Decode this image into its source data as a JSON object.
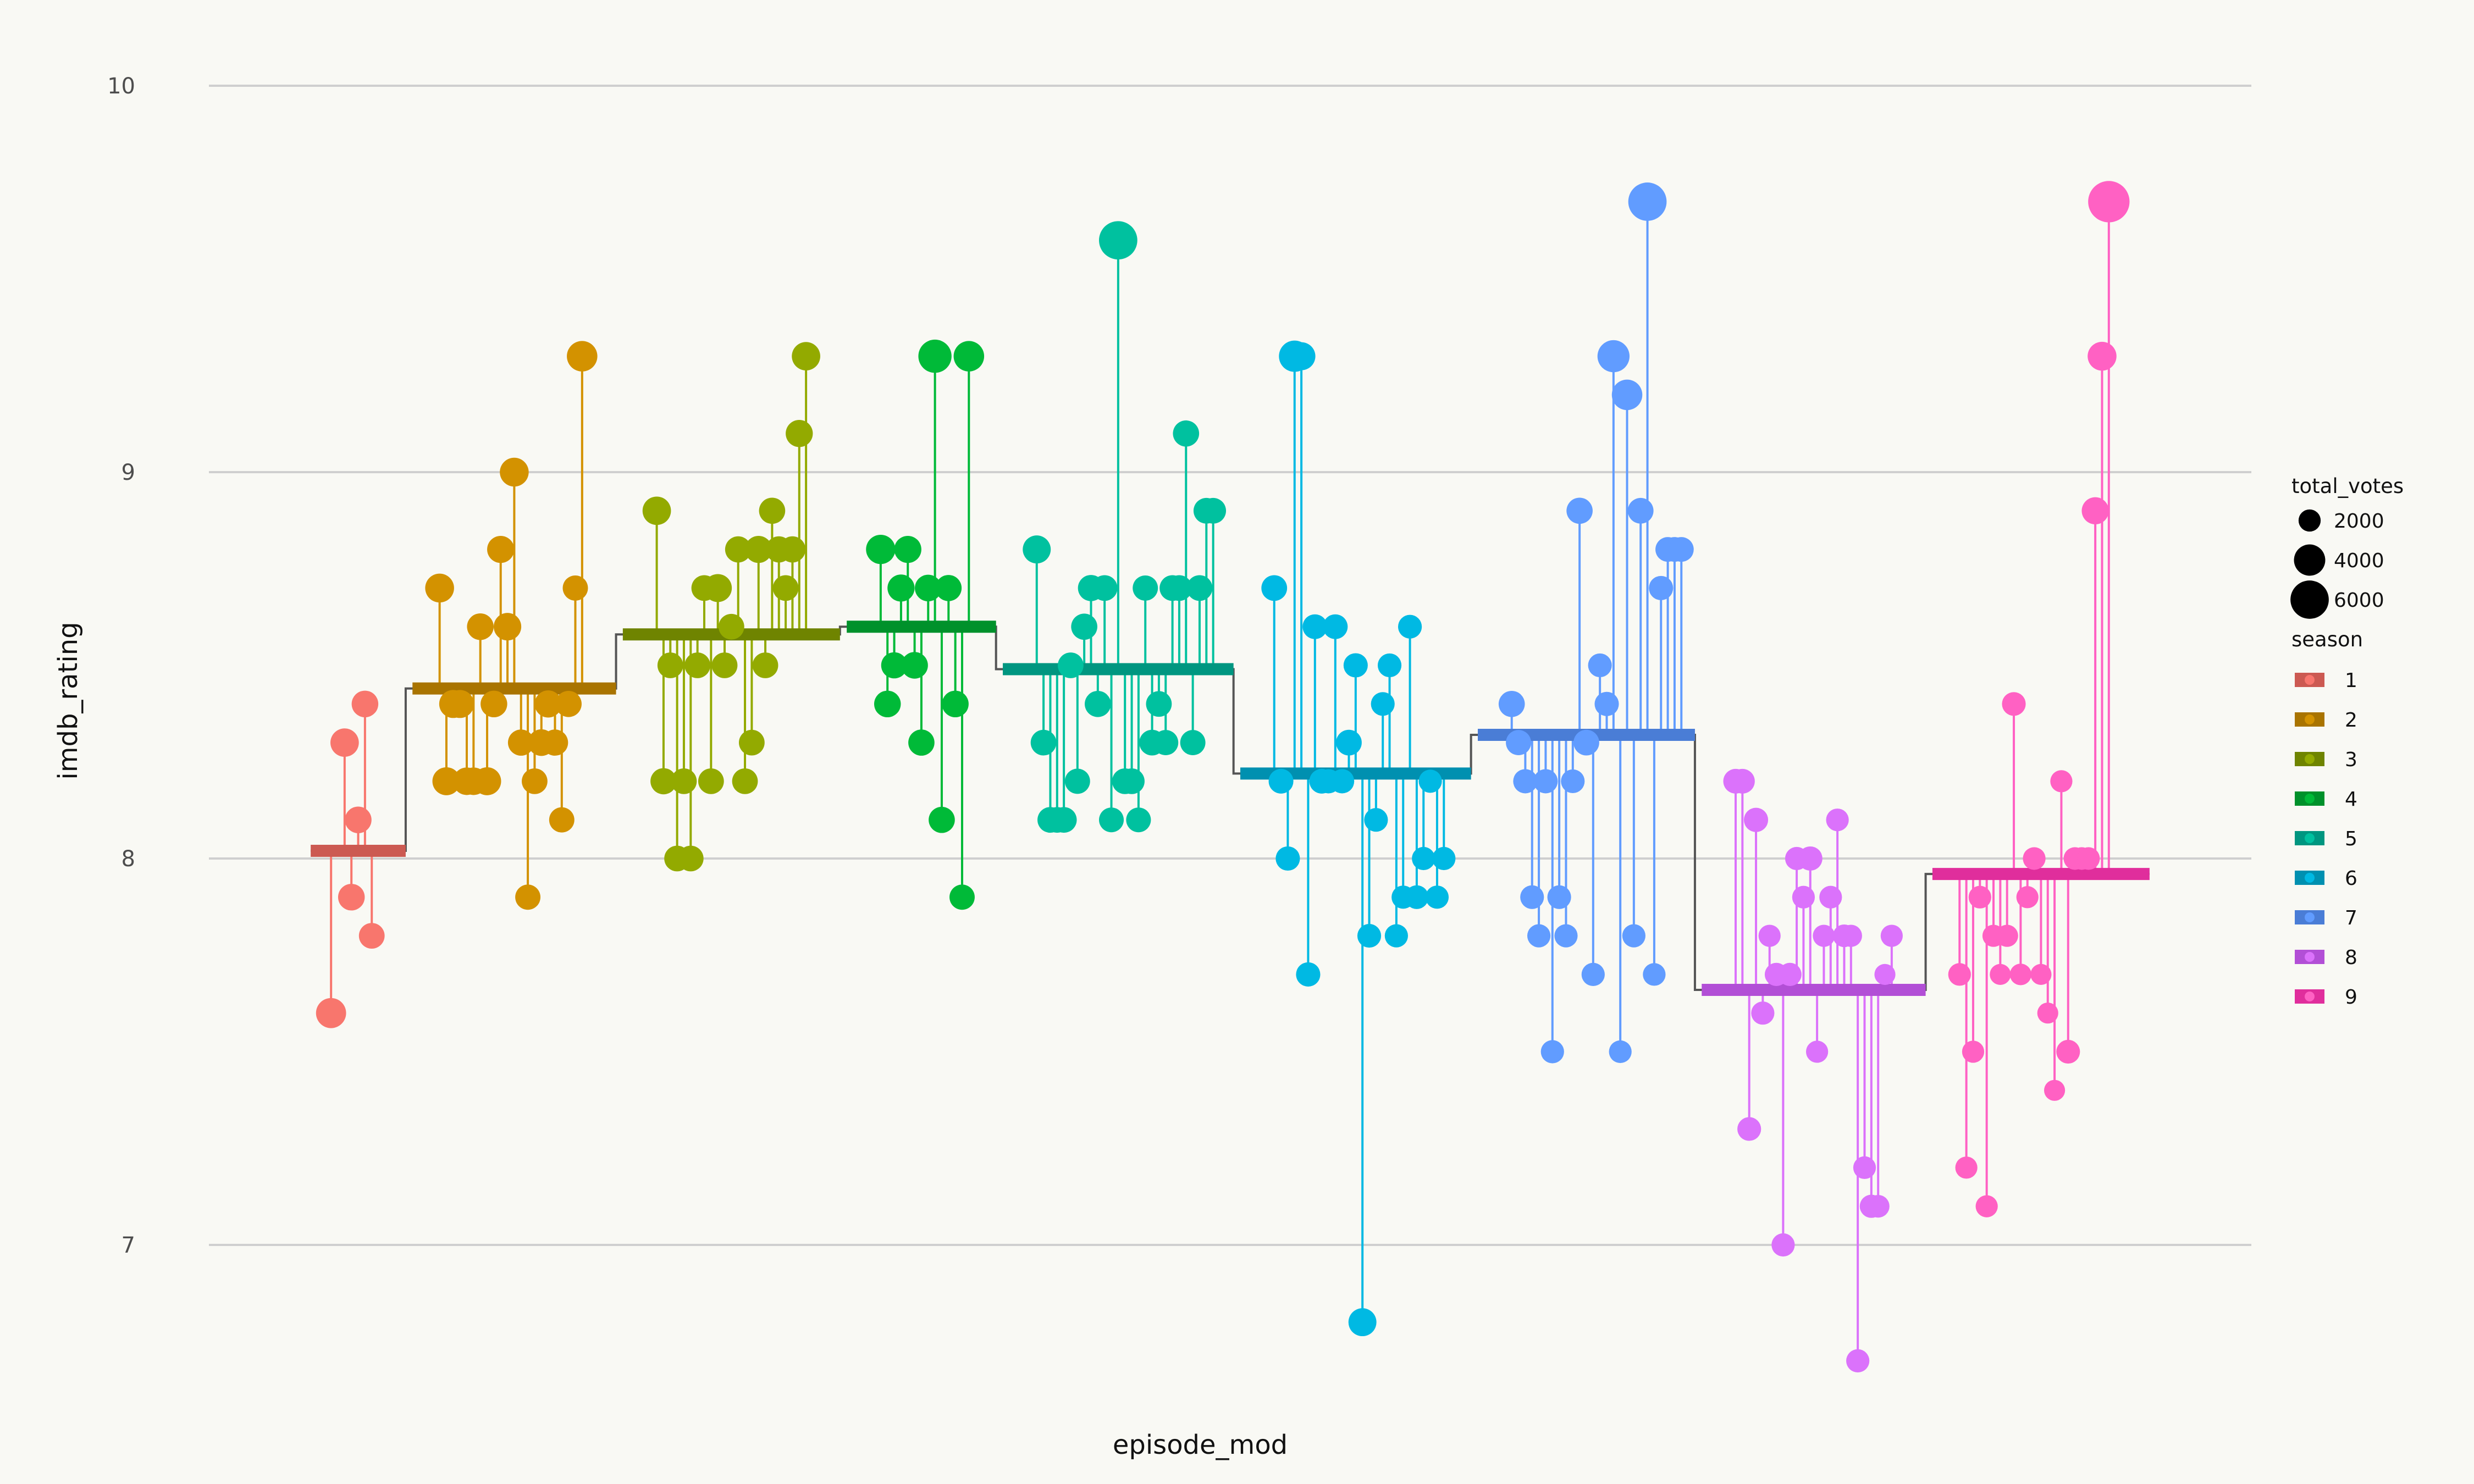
{
  "chart_data": {
    "type": "scatter",
    "title": "",
    "xlabel": "episode_mod",
    "ylabel": "imdb_rating",
    "ylim": [
      6.6,
      10.15
    ],
    "y_ticks": [
      7,
      8,
      9,
      10
    ],
    "grid": "horizontal",
    "legend_placement": "right",
    "size_legend": {
      "title": "total_votes",
      "entries": [
        {
          "label": "2000",
          "value": 2000
        },
        {
          "label": "4000",
          "value": 4000
        },
        {
          "label": "6000",
          "value": 6000
        }
      ]
    },
    "color_legend": {
      "title": "season",
      "entries": [
        {
          "label": "1",
          "season": 1
        },
        {
          "label": "2",
          "season": 2
        },
        {
          "label": "3",
          "season": 3
        },
        {
          "label": "4",
          "season": 4
        },
        {
          "label": "5",
          "season": 5
        },
        {
          "label": "6",
          "season": 6
        },
        {
          "label": "7",
          "season": 7
        },
        {
          "label": "8",
          "season": 8
        },
        {
          "label": "9",
          "season": 9
        }
      ]
    },
    "series": [
      {
        "season": 1,
        "color": "#F8766D",
        "avg_color": "#CC5A52",
        "avg": 8.02,
        "x": [
          4,
          6,
          7,
          8,
          9,
          10
        ],
        "y": [
          7.6,
          8.3,
          7.9,
          8.1,
          8.4,
          7.8
        ],
        "votes": [
          3700,
          3300,
          2900,
          2900,
          2900,
          2700
        ]
      },
      {
        "season": 2,
        "color": "#D39200",
        "avg_color": "#A97400",
        "avg": 8.44,
        "x": [
          20,
          21,
          22,
          23,
          24,
          25,
          26,
          27,
          28,
          29,
          30,
          31,
          32,
          33,
          34,
          35,
          36,
          37,
          38,
          39,
          40,
          41
        ],
        "y": [
          8.7,
          8.2,
          8.4,
          8.4,
          8.2,
          8.2,
          8.6,
          8.2,
          8.4,
          8.8,
          8.6,
          9.0,
          8.3,
          7.9,
          8.2,
          8.3,
          8.4,
          8.3,
          8.1,
          8.4,
          8.7,
          9.3
        ],
        "votes": [
          3400,
          3200,
          3200,
          3200,
          3100,
          3100,
          2900,
          3200,
          2900,
          3000,
          3100,
          3400,
          2800,
          2600,
          2700,
          2900,
          3000,
          2800,
          2600,
          2800,
          2600,
          3800
        ]
      },
      {
        "season": 3,
        "color": "#93AA00",
        "avg_color": "#6F8400",
        "avg": 8.58,
        "x": [
          52,
          53,
          54,
          55,
          56,
          57,
          58,
          59,
          60,
          61,
          62,
          63,
          64,
          65,
          66,
          67,
          68,
          69,
          70,
          71,
          72,
          73,
          74
        ],
        "y": [
          8.9,
          8.2,
          8.5,
          8.0,
          8.2,
          8.0,
          8.5,
          8.7,
          8.2,
          8.7,
          8.5,
          8.6,
          8.8,
          8.2,
          8.3,
          8.8,
          8.5,
          8.9,
          8.8,
          8.7,
          8.8,
          9.1,
          9.3
        ],
        "votes": [
          3300,
          2800,
          2700,
          2700,
          2700,
          2700,
          2700,
          2700,
          2700,
          3200,
          2700,
          2700,
          2800,
          2700,
          2700,
          3000,
          2700,
          2800,
          2800,
          2700,
          2800,
          3000,
          3300
        ]
      },
      {
        "season": 4,
        "color": "#00BA38",
        "avg_color": "#00912B",
        "avg": 8.6,
        "x": [
          85,
          86,
          87,
          88,
          89,
          90,
          91,
          92,
          93,
          94,
          95,
          96
        ],
        "y": [
          8.8,
          8.4,
          8.5,
          8.7,
          8.8,
          8.5,
          8.3,
          8.7,
          9.3,
          8.1,
          8.7,
          8.4
        ],
        "votes": [
          3500,
          2900,
          2800,
          3000,
          3000,
          2900,
          2800,
          2900,
          4500,
          2800,
          2800,
          2900
        ]
      },
      {
        "season": 4,
        "color": "#00BA38",
        "avg_color": "#00912B",
        "avg": 8.6,
        "x": [
          97,
          98
        ],
        "y": [
          7.9,
          9.3
        ],
        "votes": [
          2600,
          3800
        ]
      },
      {
        "season": 5,
        "color": "#00C19F",
        "avg_color": "#009680",
        "avg": 8.49,
        "x": [
          108,
          109,
          110,
          111,
          112,
          113,
          114,
          115,
          116,
          117,
          118,
          119,
          120,
          121,
          122,
          123,
          124,
          125,
          126,
          127,
          128,
          129,
          130,
          131,
          132,
          133,
          134
        ],
        "y": [
          8.8,
          8.3,
          8.1,
          8.1,
          8.1,
          8.5,
          8.2,
          8.6,
          8.7,
          8.4,
          8.7,
          8.1,
          9.6,
          8.2,
          8.2,
          8.1,
          8.7,
          8.3,
          8.4,
          8.3,
          8.7,
          8.7,
          9.1,
          8.3,
          8.7,
          8.9,
          8.9
        ],
        "votes": [
          3200,
          2700,
          2700,
          2700,
          2700,
          2700,
          2600,
          2800,
          2800,
          2800,
          2700,
          2500,
          6000,
          2700,
          2700,
          2500,
          2600,
          2700,
          2700,
          2600,
          2700,
          2700,
          2800,
          2600,
          2700,
          2700,
          2700
        ]
      },
      {
        "season": 6,
        "color": "#00B9E3",
        "avg_color": "#0090B0",
        "avg": 8.22,
        "x": [
          143,
          144,
          145,
          146,
          147,
          148,
          149,
          150,
          151,
          152,
          153,
          154,
          155,
          156,
          157,
          158,
          159,
          160,
          161,
          162,
          163,
          164,
          165,
          166,
          167
        ],
        "y": [
          8.7,
          8.2,
          8.0,
          9.3,
          9.3,
          7.7,
          8.6,
          8.2,
          8.2,
          8.6,
          8.2,
          8.3,
          8.5,
          6.8,
          7.8,
          8.1,
          8.4,
          8.5,
          7.8,
          7.9,
          8.6,
          7.9,
          8.0,
          8.2,
          7.9
        ],
        "votes": [
          2700,
          2500,
          2400,
          4000,
          3200,
          2400,
          2500,
          2500,
          2400,
          2500,
          2400,
          2700,
          2400,
          3200,
          2300,
          2300,
          2300,
          2300,
          2200,
          2200,
          2300,
          2300,
          2200,
          2200,
          2200
        ]
      },
      {
        "season": 6,
        "color": "#00B9E3",
        "avg_color": "#0090B0",
        "avg": 8.22,
        "x": [
          168
        ],
        "y": [
          8.0
        ],
        "votes": [
          2200
        ]
      },
      {
        "season": 7,
        "color": "#619CFF",
        "avg_color": "#4A7DD6",
        "avg": 8.32,
        "x": [
          178,
          179,
          180,
          181,
          182,
          183,
          184,
          185,
          186,
          187,
          188,
          189,
          190,
          191,
          192,
          193,
          194,
          195,
          196,
          197,
          198,
          199,
          200,
          201,
          202,
          203
        ],
        "y": [
          8.4,
          8.3,
          8.2,
          7.9,
          7.8,
          8.2,
          7.5,
          7.9,
          7.8,
          8.2,
          8.9,
          8.3,
          7.7,
          8.5,
          8.4,
          9.3,
          7.5,
          9.2,
          7.8,
          8.9,
          9.7,
          7.7,
          8.7,
          8.8,
          8.8,
          8.8
        ],
        "votes": [
          2800,
          2600,
          2400,
          2300,
          2200,
          2400,
          2200,
          2300,
          2200,
          2300,
          2800,
          2700,
          2200,
          2300,
          2400,
          4200,
          2100,
          3800,
          2200,
          2700,
          6000,
          2100,
          2400,
          2500,
          2500,
          2500
        ]
      },
      {
        "season": 8,
        "color": "#DB72FB",
        "avg_color": "#B24FD6",
        "avg": 7.66,
        "x": [
          211,
          212,
          213,
          214,
          215,
          216,
          217,
          218,
          219,
          220,
          221,
          222,
          223,
          224,
          225,
          226,
          227,
          228,
          229,
          230,
          231,
          232,
          233,
          234
        ],
        "y": [
          8.2,
          8.2,
          7.3,
          8.1,
          7.6,
          7.8,
          7.7,
          7.0,
          7.7,
          8.0,
          7.9,
          8.0,
          7.5,
          7.8,
          7.9,
          8.1,
          7.8,
          7.8,
          6.7,
          7.2,
          7.1,
          7.1,
          7.7,
          7.8
        ],
        "votes": [
          2500,
          2500,
          2300,
          2400,
          2200,
          2000,
          2200,
          2200,
          2200,
          2200,
          2100,
          2400,
          2000,
          2000,
          2100,
          2100,
          2100,
          2000,
          2200,
          2100,
          2200,
          2100,
          1800,
          2000
        ]
      },
      {
        "season": 9,
        "color": "#FF61C3",
        "avg_color": "#E02E9C",
        "avg": 7.96,
        "x": [
          244,
          245,
          246,
          247,
          248,
          249,
          250,
          251,
          252,
          253,
          254,
          255,
          256,
          257,
          258,
          259,
          260,
          261,
          262,
          263,
          264,
          265,
          266
        ],
        "y": [
          7.7,
          7.2,
          7.5,
          7.9,
          7.1,
          7.8,
          7.7,
          7.8,
          8.4,
          7.7,
          7.9,
          8.0,
          7.7,
          7.6,
          7.4,
          8.2,
          7.5,
          8.0,
          8.0,
          8.0,
          8.9,
          9.3,
          9.7
        ],
        "votes": [
          2100,
          2000,
          2000,
          2100,
          2000,
          2000,
          1800,
          2000,
          2300,
          1900,
          2000,
          2100,
          1800,
          1800,
          1800,
          2000,
          2300,
          2100,
          2100,
          2100,
          3000,
          3400,
          7000
        ]
      }
    ],
    "season_ranges": [
      {
        "season": 1,
        "x": [
          1,
          15
        ],
        "avg": 8.02
      },
      {
        "season": 2,
        "x": [
          16,
          46
        ],
        "avg": 8.44
      },
      {
        "season": 3,
        "x": [
          47,
          79
        ],
        "avg": 8.58
      },
      {
        "season": 4,
        "x": [
          80,
          102
        ],
        "avg": 8.6
      },
      {
        "season": 5,
        "x": [
          103,
          137
        ],
        "avg": 8.49
      },
      {
        "season": 6,
        "x": [
          138,
          172
        ],
        "avg": 8.22
      },
      {
        "season": 7,
        "x": [
          173,
          205
        ],
        "avg": 8.32
      },
      {
        "season": 8,
        "x": [
          206,
          239
        ],
        "avg": 7.66
      },
      {
        "season": 9,
        "x": [
          240,
          272
        ],
        "avg": 7.96
      }
    ],
    "xlim": [
      -14,
      287
    ]
  }
}
